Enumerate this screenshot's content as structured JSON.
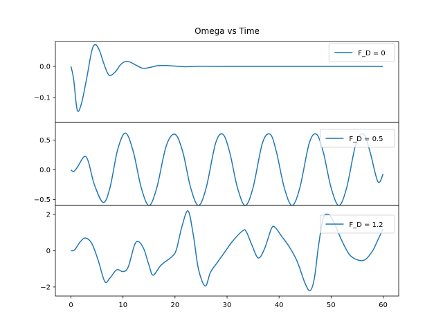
{
  "chart_data": {
    "type": "line",
    "title": "Omega vs Time",
    "xlabel": "",
    "x_ticks": [
      0,
      10,
      20,
      30,
      40,
      50,
      60
    ],
    "xlim": [
      -3,
      63
    ],
    "color": "#1f77b4",
    "legend_placement": "top-right",
    "subplots": [
      {
        "legend": "F_D = 0",
        "ylim": [
          -0.18,
          0.08
        ],
        "y_ticks": [
          0.0,
          -0.1
        ],
        "y_tick_labels": [
          "0.0",
          "−0.1"
        ],
        "points": [
          [
            0,
            0
          ],
          [
            0.5,
            -0.04
          ],
          [
            1.2,
            -0.14
          ],
          [
            2,
            -0.12
          ],
          [
            3,
            -0.04
          ],
          [
            4,
            0.05
          ],
          [
            4.7,
            0.07
          ],
          [
            5.5,
            0.05
          ],
          [
            6.3,
            0.01
          ],
          [
            7.3,
            -0.028
          ],
          [
            8.5,
            -0.018
          ],
          [
            9.5,
            0.005
          ],
          [
            10.5,
            0.016
          ],
          [
            11.5,
            0.013
          ],
          [
            12.5,
            0.004
          ],
          [
            13.8,
            -0.006
          ],
          [
            15,
            -0.004
          ],
          [
            16.5,
            0.002
          ],
          [
            18,
            0.003
          ],
          [
            20,
            0.001
          ],
          [
            22,
            -0.001
          ],
          [
            25,
            0.0005
          ],
          [
            30,
            0
          ],
          [
            40,
            0
          ],
          [
            50,
            0
          ],
          [
            60,
            0
          ]
        ]
      },
      {
        "legend": "F_D = 0.5",
        "ylim": [
          -0.6,
          0.8
        ],
        "y_ticks": [
          0.5,
          0.0,
          -0.5
        ],
        "y_tick_labels": [
          "0.5",
          "0.0",
          "−0.5"
        ],
        "points": [
          [
            0,
            0
          ],
          [
            0.5,
            -0.03
          ],
          [
            1.2,
            0.04
          ],
          [
            2.5,
            0.22
          ],
          [
            3.3,
            0.15
          ],
          [
            4.5,
            -0.25
          ],
          [
            6.2,
            -0.55
          ],
          [
            7.5,
            -0.3
          ],
          [
            9,
            0.35
          ],
          [
            10.5,
            0.62
          ],
          [
            12,
            0.3
          ],
          [
            13.5,
            -0.3
          ],
          [
            15,
            -0.6
          ],
          [
            16.5,
            -0.3
          ],
          [
            18.3,
            0.4
          ],
          [
            20,
            0.6
          ],
          [
            21.5,
            0.3
          ],
          [
            23,
            -0.3
          ],
          [
            24.5,
            -0.6
          ],
          [
            26,
            -0.3
          ],
          [
            27.8,
            0.45
          ],
          [
            29.2,
            0.6
          ],
          [
            30.5,
            0.3
          ],
          [
            32,
            -0.3
          ],
          [
            33.5,
            -0.6
          ],
          [
            35,
            -0.3
          ],
          [
            36.8,
            0.45
          ],
          [
            38.3,
            0.6
          ],
          [
            39.5,
            0.3
          ],
          [
            41,
            -0.3
          ],
          [
            42.5,
            -0.6
          ],
          [
            44,
            -0.3
          ],
          [
            45.8,
            0.45
          ],
          [
            47.2,
            0.6
          ],
          [
            48.5,
            0.3
          ],
          [
            50,
            -0.3
          ],
          [
            51.5,
            -0.6
          ],
          [
            53,
            -0.3
          ],
          [
            54.8,
            0.45
          ],
          [
            56.3,
            0.6
          ],
          [
            57.5,
            0.3
          ],
          [
            59,
            -0.2
          ],
          [
            60,
            -0.07
          ]
        ]
      },
      {
        "legend": "F_D = 1.2",
        "ylim": [
          -2.5,
          2.5
        ],
        "y_ticks": [
          2,
          0,
          -2
        ],
        "y_tick_labels": [
          "2",
          "0",
          "−2"
        ],
        "points": [
          [
            0,
            0
          ],
          [
            0.7,
            0.05
          ],
          [
            1.8,
            0.5
          ],
          [
            2.8,
            0.7
          ],
          [
            4,
            0.4
          ],
          [
            5.2,
            -0.5
          ],
          [
            6.5,
            -1.7
          ],
          [
            7.5,
            -1.5
          ],
          [
            8.8,
            -1.05
          ],
          [
            10,
            -1.15
          ],
          [
            11,
            -0.9
          ],
          [
            12.2,
            0.3
          ],
          [
            13,
            0.5
          ],
          [
            14,
            0.1
          ],
          [
            15,
            -0.8
          ],
          [
            15.8,
            -1.35
          ],
          [
            17.3,
            -0.8
          ],
          [
            19.5,
            -0.3
          ],
          [
            20.3,
            0.1
          ],
          [
            21.3,
            1.3
          ],
          [
            22.5,
            2.2
          ],
          [
            23.5,
            0.9
          ],
          [
            24.5,
            -1.0
          ],
          [
            25.8,
            -1.95
          ],
          [
            26.8,
            -1.2
          ],
          [
            28,
            -0.7
          ],
          [
            29.5,
            -0.1
          ],
          [
            31,
            0.5
          ],
          [
            33,
            1.1
          ],
          [
            33.7,
            1.05
          ],
          [
            34.8,
            0.3
          ],
          [
            36,
            -0.4
          ],
          [
            37.2,
            0.1
          ],
          [
            38.5,
            1.2
          ],
          [
            39.2,
            1.3
          ],
          [
            40.5,
            0.8
          ],
          [
            42,
            0.2
          ],
          [
            43.5,
            -0.6
          ],
          [
            45,
            -1.8
          ],
          [
            46,
            -2.2
          ],
          [
            46.8,
            -1.5
          ],
          [
            47.6,
            0.3
          ],
          [
            48.5,
            1.8
          ],
          [
            49.5,
            2.0
          ],
          [
            50.5,
            1.6
          ],
          [
            52,
            0.6
          ],
          [
            53.5,
            -0.2
          ],
          [
            55,
            -0.5
          ],
          [
            56.5,
            -0.5
          ],
          [
            58,
            0.0
          ],
          [
            59,
            0.6
          ],
          [
            60,
            1.2
          ]
        ]
      }
    ]
  }
}
